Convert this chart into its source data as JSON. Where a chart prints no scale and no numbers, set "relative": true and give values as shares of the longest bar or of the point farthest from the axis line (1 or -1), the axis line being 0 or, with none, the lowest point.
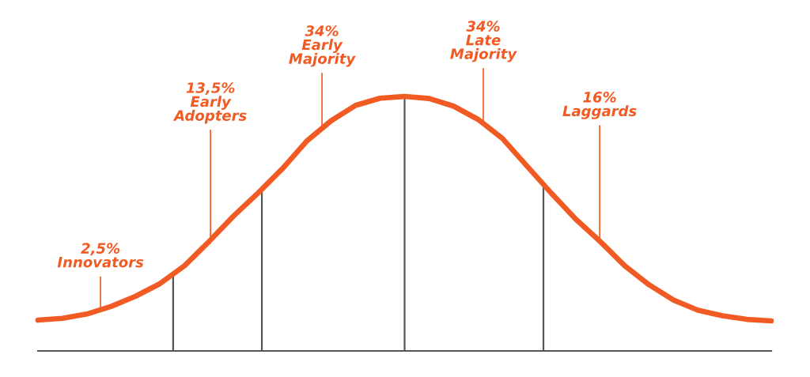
{
  "chart_data": {
    "type": "line",
    "relative": true,
    "tick_labels": false,
    "legend": false,
    "marker": "none",
    "line_style": "solid",
    "categories": [
      null,
      null,
      null,
      null,
      null,
      null,
      null,
      null,
      null,
      null,
      null,
      null,
      null,
      null,
      null,
      null,
      null,
      null,
      null,
      null,
      null,
      null,
      null,
      null,
      null,
      null,
      null,
      null,
      null,
      null,
      null
    ],
    "series": [
      {
        "color": "#f15a22",
        "values": [
          0.121,
          0.128,
          0.145,
          0.175,
          0.215,
          0.265,
          0.335,
          0.43,
          0.53,
          0.62,
          0.716,
          0.825,
          0.905,
          0.965,
          0.993,
          1,
          0.992,
          0.962,
          0.91,
          0.835,
          0.727,
          0.62,
          0.518,
          0.43,
          0.335,
          0.26,
          0.2,
          0.16,
          0.138,
          0.124,
          0.118
        ]
      }
    ],
    "annotations": [
      "2,5%\nInnovators",
      "13,5%\nEarly\nAdopters",
      "34%\nEarly\nMajority",
      "34%\nLate\nMajority",
      "16%\nLaggards"
    ]
  }
}
